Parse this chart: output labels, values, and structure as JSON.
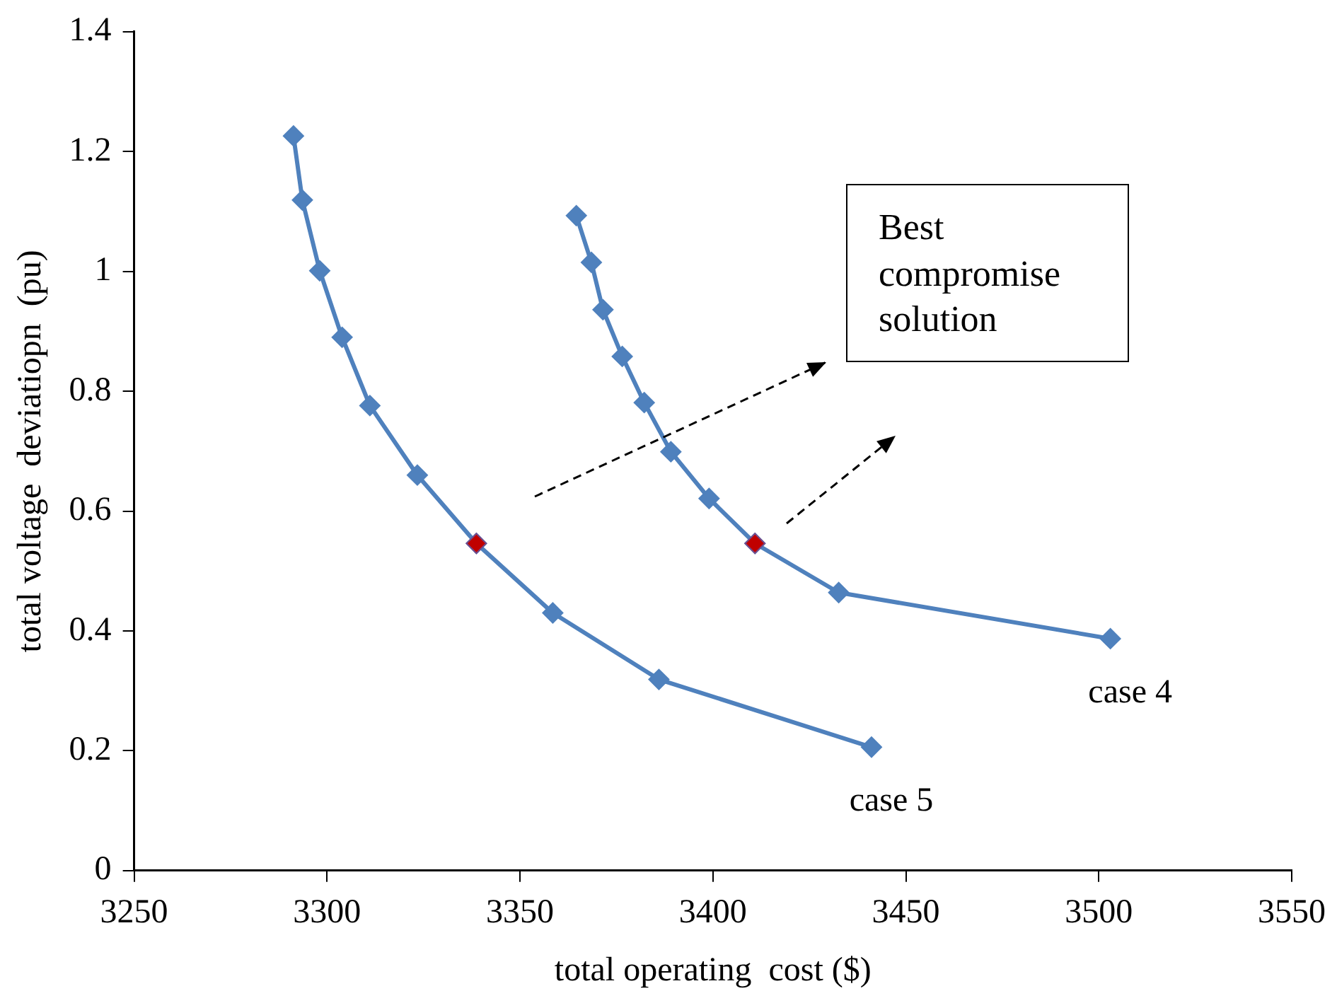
{
  "chart_data": {
    "type": "line",
    "xlabel": "total operating  cost ($)",
    "ylabel": "total voltage  deviatiopn  (pu)",
    "marker": "diamond",
    "grid": false,
    "legend": false,
    "xlim": [
      3250,
      3550
    ],
    "xticks": [
      3250,
      3300,
      3350,
      3400,
      3450,
      3500,
      3550
    ],
    "ylim": [
      0,
      1.4
    ],
    "yticks": [
      0,
      0.2,
      0.4,
      0.6,
      0.8,
      1,
      1.2,
      1.4
    ],
    "annotations": [
      "Best compromise solution"
    ],
    "series": [
      {
        "name": "case 5",
        "color": "#4f81bd",
        "x": [
          3291.3,
          3293.6,
          3298.1,
          3303.9,
          3311.1,
          3323.4,
          3338.7,
          3358.5,
          3386.0,
          3441.1
        ],
        "values": [
          1.226,
          1.119,
          1.001,
          0.89,
          0.776,
          0.66,
          0.546,
          0.43,
          0.319,
          0.206
        ]
      },
      {
        "name": "case 4",
        "color": "#4f81bd",
        "x": [
          3364.6,
          3368.5,
          3371.5,
          3376.5,
          3382.2,
          3389.1,
          3399.0,
          3410.9,
          3432.6,
          3503.0
        ],
        "values": [
          1.093,
          1.015,
          0.936,
          0.858,
          0.781,
          0.699,
          0.621,
          0.546,
          0.464,
          0.387
        ]
      },
      {
        "type": "scatter",
        "color": "#c00000",
        "x": [
          3338.7,
          3410.9
        ],
        "values": [
          0.546,
          0.546
        ]
      }
    ]
  }
}
